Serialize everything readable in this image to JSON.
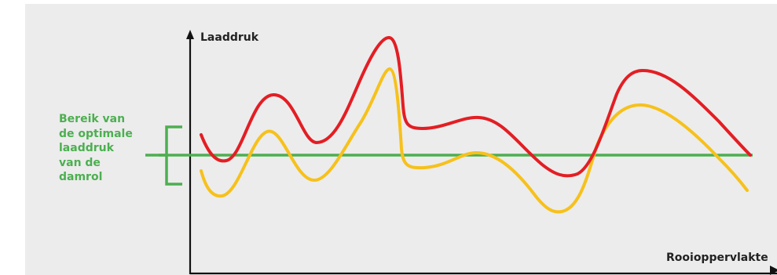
{
  "diagram": {
    "y_axis_label": "Laaddruk",
    "x_axis_label": "Rooioppervlakte",
    "range_label_lines": [
      "Bereik van",
      "de optimale",
      "laaddruk",
      "van de",
      "damrol"
    ]
  },
  "colors": {
    "panel_background": "#ececec",
    "axis": "#111111",
    "red_curve": "#e31e24",
    "yellow_curve": "#f7c11b",
    "green_line": "#4caf50",
    "range_label": "#4caf50"
  }
}
